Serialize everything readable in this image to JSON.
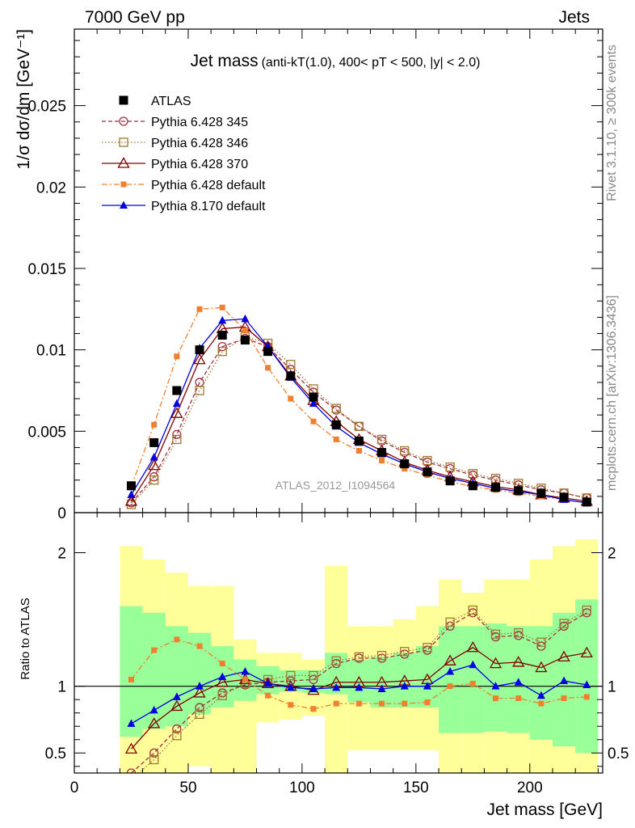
{
  "header": {
    "left": "7000 GeV pp",
    "right": "Jets"
  },
  "side_labels": {
    "rivet": "Rivet 3.1.10, ≥ 300k events",
    "mcplots": "mcplots.cern.ch [arXiv:1306.3436]"
  },
  "chart_data": {
    "type": "line",
    "title_main": "Jet mass",
    "title_sub": "(anti-kT(1.0), 400< pT < 500, |y| < 2.0)",
    "ylabel": "1/σ dσ/dm [GeV⁻¹]",
    "xlabel": "Jet mass [GeV]",
    "ratio_ylabel": "Ratio to ATLAS",
    "analysis_id": "ATLAS_2012_I1094564",
    "xlim": [
      0,
      232
    ],
    "ylim": [
      0,
      0.0297
    ],
    "ratio_ylim": [
      0.35,
      2.3
    ],
    "x": [
      25,
      35,
      45,
      55,
      65,
      75,
      85,
      95,
      105,
      115,
      125,
      135,
      145,
      155,
      165,
      175,
      185,
      195,
      205,
      215,
      225
    ],
    "band_edges": [
      20,
      30,
      40,
      50,
      60,
      70,
      80,
      90,
      100,
      110,
      120,
      130,
      140,
      150,
      160,
      170,
      180,
      190,
      200,
      210,
      220,
      230
    ],
    "bands": {
      "green": {
        "lo": [
          0.62,
          0.68,
          0.7,
          0.79,
          0.84,
          0.89,
          0.94,
          0.96,
          0.95,
          0.94,
          0.88,
          0.84,
          0.84,
          0.84,
          0.65,
          0.65,
          0.66,
          0.65,
          0.6,
          0.55,
          0.5
        ],
        "hi": [
          1.6,
          1.55,
          1.45,
          1.4,
          1.3,
          1.2,
          1.15,
          1.12,
          1.12,
          1.25,
          1.2,
          1.22,
          1.25,
          1.3,
          1.45,
          1.45,
          1.47,
          1.45,
          1.45,
          1.55,
          1.65
        ]
      },
      "yellow": {
        "lo": [
          0.1,
          0.1,
          0.2,
          0.4,
          0.1,
          0.1,
          0.73,
          0.75,
          0.78,
          0.2,
          0.52,
          0.52,
          0.52,
          0.52,
          0.2,
          0.2,
          0.35,
          0.2,
          0.2,
          0.2,
          0.2
        ],
        "hi": [
          2.05,
          1.95,
          1.85,
          1.75,
          1.75,
          1.35,
          1.25,
          1.25,
          1.2,
          1.9,
          1.45,
          1.45,
          1.5,
          1.6,
          1.8,
          1.7,
          1.8,
          1.8,
          1.95,
          2.05,
          2.1
        ]
      }
    },
    "series": [
      {
        "name": "ATLAS",
        "color": "#000000",
        "marker": "filled-square",
        "line": "none",
        "values": [
          0.00165,
          0.0043,
          0.0075,
          0.01,
          0.0109,
          0.0106,
          0.0099,
          0.0084,
          0.0071,
          0.0054,
          0.0044,
          0.0037,
          0.003,
          0.0025,
          0.00195,
          0.00165,
          0.00155,
          0.00135,
          0.0012,
          0.00095,
          0.00065
        ],
        "ratio": [
          1,
          1,
          1,
          1,
          1,
          1,
          1,
          1,
          1,
          1,
          1,
          1,
          1,
          1,
          1,
          1,
          1,
          1,
          1,
          1,
          1
        ]
      },
      {
        "name": "Pythia 6.428 345",
        "color": "#a03040",
        "marker": "open-circle",
        "line": "dashed",
        "values": [
          0.0006,
          0.0022,
          0.0048,
          0.008,
          0.0102,
          0.0107,
          0.0102,
          0.0088,
          0.0074,
          0.0063,
          0.0053,
          0.0044,
          0.0037,
          0.0031,
          0.0027,
          0.0023,
          0.002,
          0.0017,
          0.0014,
          0.0012,
          0.0009
        ],
        "ratio": [
          0.35,
          0.5,
          0.68,
          0.84,
          0.95,
          1.01,
          1.03,
          1.04,
          1.05,
          1.17,
          1.21,
          1.21,
          1.24,
          1.27,
          1.45,
          1.55,
          1.37,
          1.38,
          1.3,
          1.45,
          1.55
        ]
      },
      {
        "name": "Pythia 6.428 346",
        "color": "#a07830",
        "marker": "open-square",
        "line": "dotted",
        "values": [
          0.0005,
          0.002,
          0.0045,
          0.0075,
          0.0099,
          0.0108,
          0.0104,
          0.0091,
          0.0076,
          0.0064,
          0.0053,
          0.0045,
          0.0038,
          0.0032,
          0.0028,
          0.0024,
          0.0021,
          0.0018,
          0.0015,
          0.0012,
          0.0009
        ],
        "ratio": [
          0.3,
          0.45,
          0.63,
          0.79,
          0.93,
          1.02,
          1.05,
          1.08,
          1.08,
          1.19,
          1.22,
          1.23,
          1.26,
          1.29,
          1.48,
          1.57,
          1.39,
          1.4,
          1.33,
          1.47,
          1.57
        ]
      },
      {
        "name": "Pythia 6.428 370",
        "color": "#800000",
        "marker": "open-triangle",
        "line": "solid",
        "values": [
          0.0007,
          0.0029,
          0.0061,
          0.0094,
          0.0113,
          0.0114,
          0.0102,
          0.0084,
          0.0069,
          0.0056,
          0.0045,
          0.0038,
          0.0031,
          0.0026,
          0.0022,
          0.0019,
          0.0016,
          0.0014,
          0.0011,
          0.0009,
          0.0007
        ],
        "ratio": [
          0.53,
          0.72,
          0.85,
          0.95,
          1.03,
          1.05,
          1.02,
          1.0,
          0.97,
          1.03,
          1.03,
          1.03,
          1.04,
          1.05,
          1.19,
          1.29,
          1.17,
          1.18,
          1.14,
          1.22,
          1.25
        ]
      },
      {
        "name": "Pythia 6.428 default",
        "color": "#f08030",
        "marker": "filled-square-small",
        "line": "dashdot",
        "values": [
          0.0016,
          0.0054,
          0.0096,
          0.0125,
          0.0126,
          0.0112,
          0.0089,
          0.007,
          0.0056,
          0.0045,
          0.0038,
          0.0032,
          0.0027,
          0.0023,
          0.0019,
          0.0016,
          0.0014,
          0.0012,
          0.001,
          0.0008,
          0.0006
        ],
        "ratio": [
          1.05,
          1.27,
          1.35,
          1.3,
          1.17,
          1.05,
          0.93,
          0.86,
          0.83,
          0.87,
          0.87,
          0.87,
          0.87,
          0.88,
          1.0,
          1.02,
          0.91,
          0.91,
          0.87,
          0.91,
          0.92
        ]
      },
      {
        "name": "Pythia 8.170 default",
        "color": "#0000e0",
        "marker": "filled-triangle",
        "line": "solid",
        "values": [
          0.0011,
          0.0034,
          0.0067,
          0.0101,
          0.0118,
          0.0119,
          0.0102,
          0.0083,
          0.0067,
          0.0053,
          0.0043,
          0.0036,
          0.003,
          0.0025,
          0.0021,
          0.0018,
          0.0015,
          0.0013,
          0.0011,
          0.0008,
          0.0006
        ],
        "ratio": [
          0.72,
          0.82,
          0.92,
          1.0,
          1.07,
          1.11,
          1.02,
          0.99,
          0.98,
          0.99,
          0.99,
          0.98,
          1.0,
          1.0,
          1.11,
          1.16,
          1.0,
          1.03,
          0.93,
          1.04,
          1.01
        ]
      }
    ],
    "main_yticks": [
      {
        "v": 0,
        "label": "0"
      },
      {
        "v": 0.005,
        "label": "0.005"
      },
      {
        "v": 0.01,
        "label": "0.01"
      },
      {
        "v": 0.015,
        "label": "0.015"
      },
      {
        "v": 0.02,
        "label": "0.02"
      },
      {
        "v": 0.025,
        "label": "0.025"
      }
    ],
    "ratio_yticks": [
      {
        "v": 0.5,
        "label": "0.5"
      },
      {
        "v": 1,
        "label": "1"
      },
      {
        "v": 2,
        "label": "2"
      }
    ],
    "xticks": [
      {
        "v": 0,
        "label": "0"
      },
      {
        "v": 50,
        "label": "50"
      },
      {
        "v": 100,
        "label": "100"
      },
      {
        "v": 150,
        "label": "150"
      },
      {
        "v": 200,
        "label": "200"
      }
    ]
  }
}
